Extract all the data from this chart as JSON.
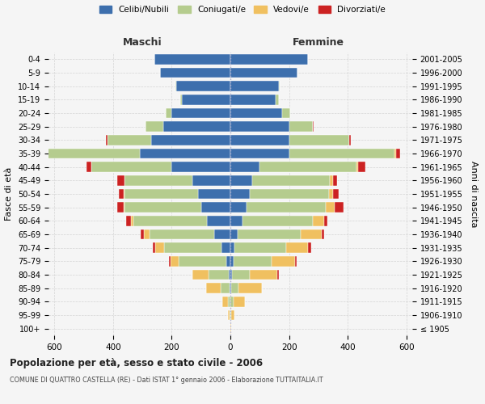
{
  "age_groups": [
    "100+",
    "95-99",
    "90-94",
    "85-89",
    "80-84",
    "75-79",
    "70-74",
    "65-69",
    "60-64",
    "55-59",
    "50-54",
    "45-49",
    "40-44",
    "35-39",
    "30-34",
    "25-29",
    "20-24",
    "15-19",
    "10-14",
    "5-9",
    "0-4"
  ],
  "birth_years": [
    "≤ 1905",
    "1906-1910",
    "1911-1915",
    "1916-1920",
    "1921-1925",
    "1926-1930",
    "1931-1935",
    "1936-1940",
    "1941-1945",
    "1946-1950",
    "1951-1955",
    "1956-1960",
    "1961-1965",
    "1966-1970",
    "1971-1975",
    "1976-1980",
    "1981-1985",
    "1986-1990",
    "1991-1995",
    "1996-2000",
    "2001-2005"
  ],
  "colors": {
    "celibe": "#3d6fad",
    "coniugato": "#b5cc8e",
    "vedovo": "#f0c060",
    "divorziato": "#cc2222"
  },
  "maschi": {
    "celibe": [
      0,
      0,
      0,
      2,
      5,
      15,
      30,
      55,
      80,
      100,
      110,
      130,
      200,
      310,
      270,
      230,
      200,
      165,
      185,
      240,
      260
    ],
    "coniugato": [
      0,
      2,
      8,
      30,
      70,
      160,
      195,
      220,
      250,
      260,
      250,
      230,
      275,
      335,
      150,
      60,
      20,
      5,
      2,
      0,
      0
    ],
    "vedovo": [
      0,
      5,
      20,
      50,
      55,
      30,
      30,
      20,
      10,
      5,
      5,
      0,
      0,
      0,
      0,
      0,
      0,
      0,
      0,
      0,
      0
    ],
    "divorziato": [
      0,
      0,
      0,
      0,
      0,
      5,
      10,
      10,
      15,
      20,
      15,
      25,
      15,
      15,
      5,
      0,
      0,
      0,
      0,
      0,
      0
    ]
  },
  "femmine": {
    "celibe": [
      0,
      0,
      0,
      2,
      5,
      10,
      15,
      25,
      40,
      55,
      65,
      75,
      100,
      200,
      200,
      200,
      175,
      155,
      165,
      230,
      265
    ],
    "coniugato": [
      0,
      3,
      10,
      25,
      60,
      130,
      175,
      215,
      240,
      270,
      270,
      265,
      330,
      360,
      205,
      80,
      30,
      10,
      2,
      0,
      0
    ],
    "vedovo": [
      2,
      10,
      40,
      80,
      95,
      80,
      75,
      70,
      40,
      30,
      15,
      10,
      5,
      5,
      0,
      0,
      0,
      0,
      0,
      0,
      0
    ],
    "divorziato": [
      0,
      0,
      0,
      0,
      5,
      5,
      10,
      10,
      10,
      30,
      20,
      15,
      25,
      15,
      5,
      5,
      0,
      0,
      0,
      0,
      0
    ]
  },
  "title": "Popolazione per età, sesso e stato civile - 2006",
  "subtitle": "COMUNE DI QUATTRO CASTELLA (RE) - Dati ISTAT 1° gennaio 2006 - Elaborazione TUTTAITALIA.IT",
  "xlabel_left": "Maschi",
  "xlabel_right": "Femmine",
  "ylabel_left": "Fasce di età",
  "ylabel_right": "Anni di nascita",
  "xlim": 620,
  "background_color": "#f5f5f5",
  "grid_color": "#cccccc",
  "legend_labels": [
    "Celibi/Nubili",
    "Coniugati/e",
    "Vedovi/e",
    "Divorziati/e"
  ]
}
